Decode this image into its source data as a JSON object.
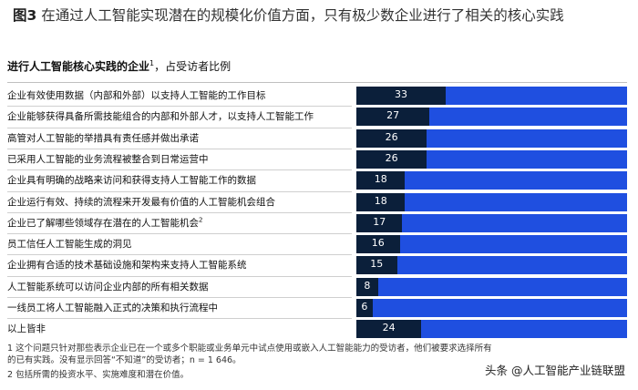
{
  "figure": {
    "title_prefix": "图3",
    "title_text": "在通过人工智能实现潜在的规模化价值方面，只有极少数企业进行了相关的核心实践",
    "subtitle_bold": "进行人工智能核心实践的企业",
    "subtitle_sup": "1",
    "subtitle_rest": "，占受访者比例"
  },
  "chart_data": {
    "type": "bar",
    "orientation": "horizontal",
    "stacked_to": 100,
    "categories": [
      "企业有效使用数据（内部和外部）以支持人工智能的工作目标",
      "企业能够获得具备所需技能组合的内部和外部人才，以支持人工智能工作",
      "高管对人工智能的举措具有责任感并做出承诺",
      "已采用人工智能的业务流程被整合到日常运营中",
      "企业具有明确的战略来访问和获得支持人工智能工作的数据",
      "企业运行有效、持续的流程来开发最有价值的人工智能机会组合",
      "企业已了解哪些领域存在潜在的人工智能机会",
      "员工信任人工智能生成的洞见",
      "企业拥有合适的技术基础设施和架构来支持人工智能系统",
      "人工智能系统可以访问企业内部的所有相关数据",
      "一线员工将人工智能融入正式的决策和执行流程中",
      "以上皆非"
    ],
    "category_sups": [
      "",
      "",
      "",
      "",
      "",
      "",
      "2",
      "",
      "",
      "",
      "",
      ""
    ],
    "values": [
      33,
      27,
      26,
      26,
      18,
      18,
      17,
      16,
      15,
      8,
      6,
      24
    ],
    "colors": {
      "value": "#0b1f3a",
      "remainder": "#1f4fe0"
    }
  },
  "footnotes": {
    "note1_line1": "1  这个问题只针对那些表示企业已在一个或多个职能或业务单元中试点使用或嵌入人工智能能力的受访者，他们被要求选择所有",
    "note1_line2": "的已有实践。没有显示回答“不知道”的受访者；n = 1 646。",
    "note2": "2  包括所需的投资水平、实施难度和潜在价值。"
  },
  "watermark": "头条 @人工智能产业链联盟"
}
